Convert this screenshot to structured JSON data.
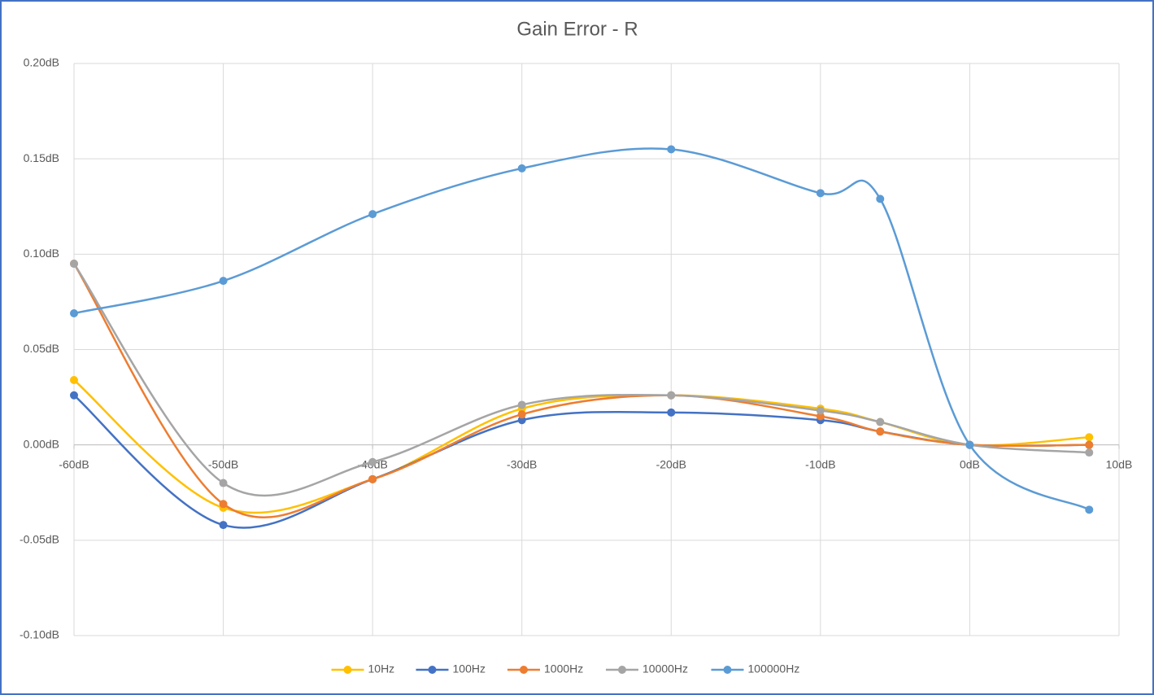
{
  "chart_data": {
    "type": "scatter-smooth",
    "title": "Gain Error - R",
    "x": [
      -60,
      -50,
      -40,
      -30,
      -20,
      -10,
      -6,
      0,
      8
    ],
    "series": [
      {
        "name": "10Hz",
        "color": "#ffc000",
        "values": [
          0.034,
          -0.033,
          -0.018,
          0.019,
          0.026,
          0.019,
          0.012,
          0,
          0.004
        ]
      },
      {
        "name": "100Hz",
        "color": "#4472c4",
        "values": [
          0.026,
          -0.042,
          -0.018,
          0.013,
          0.017,
          0.013,
          0.007,
          0,
          0
        ]
      },
      {
        "name": "1000Hz",
        "color": "#ed7d31",
        "values": [
          0.095,
          -0.031,
          -0.018,
          0.016,
          0.026,
          0.015,
          0.007,
          0,
          0
        ]
      },
      {
        "name": "10000Hz",
        "color": "#a5a5a5",
        "values": [
          0.095,
          -0.02,
          -0.009,
          0.021,
          0.026,
          0.018,
          0.012,
          0,
          -0.004
        ]
      },
      {
        "name": "100000Hz",
        "color": "#5b9bd5",
        "values": [
          0.069,
          0.086,
          0.121,
          0.145,
          0.155,
          0.132,
          0.129,
          0,
          -0.034
        ]
      }
    ],
    "xlim": [
      -60,
      10
    ],
    "xticks": [
      {
        "value": -60,
        "label": "-60dB"
      },
      {
        "value": -50,
        "label": "-50dB"
      },
      {
        "value": -40,
        "label": "-40dB"
      },
      {
        "value": -30,
        "label": "-30dB"
      },
      {
        "value": -20,
        "label": "-20dB"
      },
      {
        "value": -10,
        "label": "-10dB"
      },
      {
        "value": 0,
        "label": "0dB"
      },
      {
        "value": 10,
        "label": "10dB"
      }
    ],
    "ylim": [
      -0.1,
      0.2
    ],
    "yticks": [
      {
        "value": -0.1,
        "label": "-0.10dB"
      },
      {
        "value": -0.05,
        "label": "-0.05dB"
      },
      {
        "value": 0,
        "label": "0.00dB"
      },
      {
        "value": 0.05,
        "label": "0.05dB"
      },
      {
        "value": 0.1,
        "label": "0.10dB"
      },
      {
        "value": 0.15,
        "label": "0.15dB"
      },
      {
        "value": 0.2,
        "label": "0.20dB"
      }
    ],
    "grid": true,
    "legend": "bottom"
  }
}
